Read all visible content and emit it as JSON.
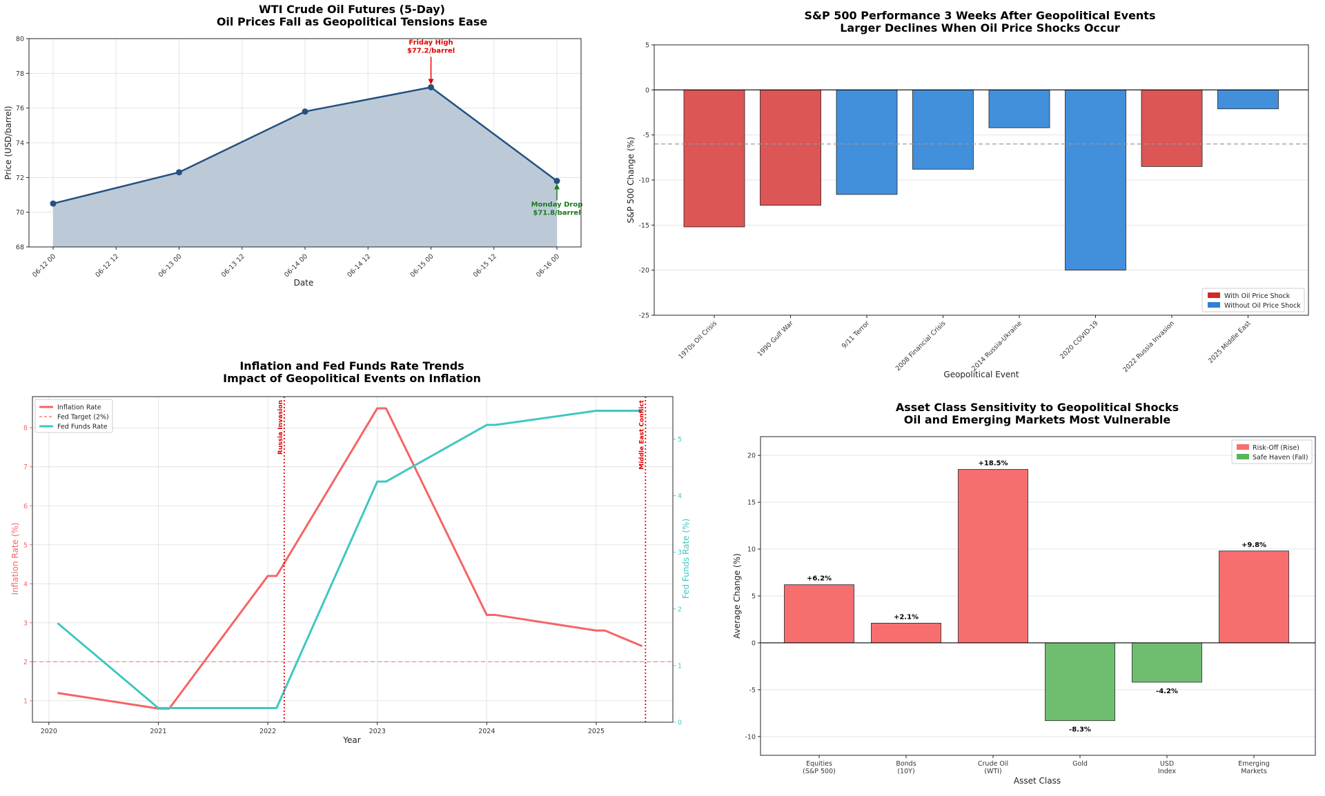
{
  "chart_data": [
    {
      "type": "area",
      "title": "WTI Crude Oil Futures (5-Day)",
      "subtitle": "Oil Prices Fall as Geopolitical Tensions Ease",
      "xlabel": "Date",
      "ylabel": "Price (USD/barrel)",
      "xlim": [
        0,
        96
      ],
      "ylim": [
        68,
        80
      ],
      "yticks": [
        68,
        70,
        72,
        74,
        76,
        78,
        80
      ],
      "xticks": [
        {
          "t": 0,
          "label": "06-12 00"
        },
        {
          "t": 12,
          "label": "06-12 12"
        },
        {
          "t": 24,
          "label": "06-13 00"
        },
        {
          "t": 36,
          "label": "06-13 12"
        },
        {
          "t": 48,
          "label": "06-14 00"
        },
        {
          "t": 60,
          "label": "06-14 12"
        },
        {
          "t": 72,
          "label": "06-15 00"
        },
        {
          "t": 84,
          "label": "06-15 12"
        },
        {
          "t": 96,
          "label": "06-16 00"
        }
      ],
      "points": [
        {
          "t": 0,
          "y": 70.5
        },
        {
          "t": 24,
          "y": 72.3
        },
        {
          "t": 48,
          "y": 75.8
        },
        {
          "t": 72,
          "y": 77.2
        },
        {
          "t": 96,
          "y": 71.8
        }
      ],
      "annotations": [
        {
          "label": "Friday High",
          "value": "$77.2/barrel",
          "t": 72,
          "y": 77.2,
          "color": "#e00000"
        },
        {
          "label": "Monday Drop",
          "value": "$71.8/barrel",
          "t": 96,
          "y": 71.8,
          "color": "#1a7a1a"
        }
      ],
      "colors": {
        "line": "#24517f",
        "fill": "#bccad8"
      }
    },
    {
      "type": "bar",
      "title": "S&P 500 Performance 3 Weeks After Geopolitical Events",
      "subtitle": "Larger Declines When Oil Price Shocks Occur",
      "xlabel": "Geopolitical Event",
      "ylabel": "S&P 500 Change (%)",
      "ylim": [
        -25,
        5
      ],
      "yticks": [
        -25,
        -20,
        -15,
        -10,
        -5,
        0,
        5
      ],
      "categories": [
        "1970s Oil Crisis",
        "1990 Gulf War",
        "9/11 Terror",
        "2008 Financial Crisis",
        "2014 Russia-Ukraine",
        "2020 COVID-19",
        "2022 Russia Invasion",
        "2025 Middle East"
      ],
      "values": [
        -15.2,
        -12.8,
        -11.6,
        -8.8,
        -4.2,
        -20.0,
        -8.5,
        -2.1
      ],
      "oil_shock": [
        true,
        true,
        false,
        false,
        false,
        false,
        true,
        false
      ],
      "average_line": -6.0,
      "legend": [
        {
          "label": "With Oil Price Shock",
          "color": "#d62728"
        },
        {
          "label": "Without Oil Price Shock",
          "color": "#2f7fd6"
        }
      ],
      "colors": {
        "shock": "#dc5656",
        "noshock": "#428fdc"
      }
    },
    {
      "type": "line",
      "title": "Inflation and Fed Funds Rate Trends",
      "subtitle": "Impact of Geopolitical Events on Inflation",
      "xlabel": "Year",
      "ylabel": "Inflation Rate (%)",
      "ylabel_right": "Fed Funds Rate (%)",
      "xlim": [
        2019.85,
        2025.7
      ],
      "ylim": [
        0.45,
        8.8
      ],
      "ylim_right": [
        0,
        5.75
      ],
      "xticks": [
        2020,
        2021,
        2022,
        2023,
        2024,
        2025
      ],
      "yticks": [
        1,
        2,
        3,
        4,
        5,
        6,
        7,
        8
      ],
      "yticks_right": [
        0,
        1,
        2,
        3,
        4,
        5
      ],
      "series": [
        {
          "name": "Inflation Rate",
          "axis": "left",
          "color": "#f56464",
          "x": [
            2020.08,
            2021.0,
            2021.1,
            2022.0,
            2022.08,
            2023.0,
            2023.08,
            2024.0,
            2024.08,
            2025.0,
            2025.08,
            2025.42
          ],
          "y": [
            1.2,
            0.8,
            0.8,
            4.2,
            4.2,
            8.5,
            8.5,
            3.2,
            3.2,
            2.8,
            2.8,
            2.4
          ]
        },
        {
          "name": "Fed Funds Rate",
          "axis": "right",
          "color": "#3fc7c0",
          "x": [
            2020.08,
            2021.0,
            2022.08,
            2023.0,
            2023.08,
            2024.0,
            2024.08,
            2025.0,
            2025.42
          ],
          "y": [
            1.75,
            0.25,
            0.25,
            4.25,
            4.25,
            5.25,
            5.25,
            5.5,
            5.5
          ]
        }
      ],
      "legend": [
        {
          "label": "Inflation Rate",
          "color": "#f56464",
          "style": "solid"
        },
        {
          "label": "Fed Target (2%)",
          "color": "#f56464",
          "style": "dashed"
        },
        {
          "label": "Fed Funds Rate",
          "color": "#3fc7c0",
          "style": "solid"
        }
      ],
      "hline": {
        "y": 2,
        "label": "Fed Target (2%)"
      },
      "events": [
        {
          "x": 2022.15,
          "label": "Russia Invasion"
        },
        {
          "x": 2025.45,
          "label": "Middle East Conflict"
        }
      ]
    },
    {
      "type": "bar",
      "title": "Asset Class Sensitivity to Geopolitical Shocks",
      "subtitle": "Oil and Emerging Markets Most Vulnerable",
      "xlabel": "Asset Class",
      "ylabel": "Average Change (%)",
      "ylim": [
        -12,
        22
      ],
      "yticks": [
        -10,
        -5,
        0,
        5,
        10,
        15,
        20
      ],
      "categories": [
        [
          "Equities",
          "(S&P 500)"
        ],
        [
          "Bonds",
          "(10Y)"
        ],
        [
          "Crude Oil",
          "(WTI)"
        ],
        [
          "Gold"
        ],
        [
          "USD",
          "Index"
        ],
        [
          "Emerging",
          "Markets"
        ]
      ],
      "values": [
        6.2,
        2.1,
        18.5,
        -8.3,
        -4.2,
        9.8
      ],
      "data_labels": [
        "+6.2%",
        "+2.1%",
        "+18.5%",
        "-8.3%",
        "-4.2%",
        "+9.8%"
      ],
      "legend": [
        {
          "label": "Risk-Off (Rise)",
          "color": "#f76e6e"
        },
        {
          "label": "Safe Haven (Fall)",
          "color": "#5ab55a"
        }
      ],
      "colors": {
        "rise": "#f76e6e",
        "fall": "#6fbe6f"
      }
    }
  ]
}
